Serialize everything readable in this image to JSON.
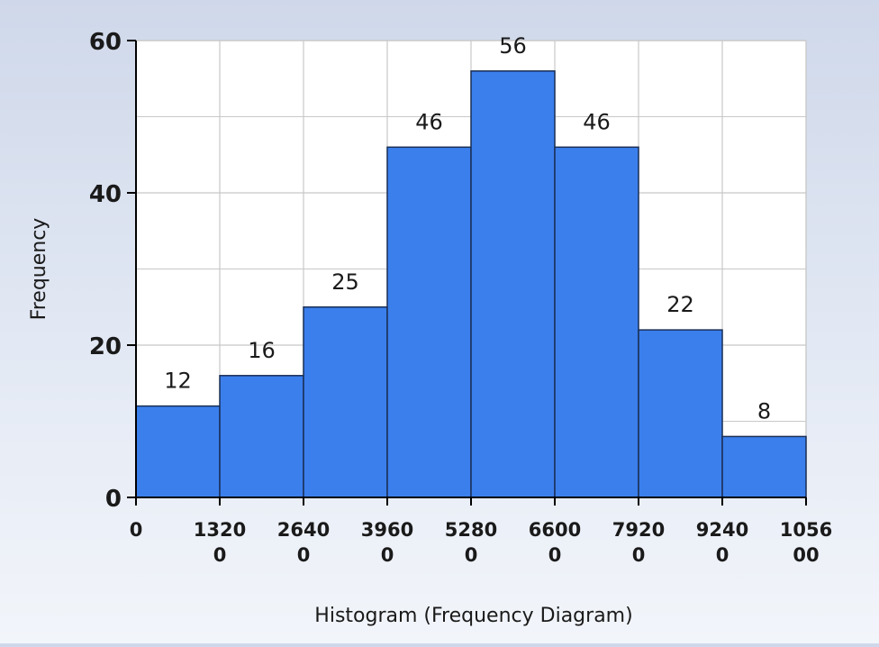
{
  "chart_data": {
    "type": "bar",
    "title": "",
    "xlabel": "Histogram (Frequency Diagram)",
    "ylabel": "Frequency",
    "bin_edges": [
      "0",
      "13200",
      "26400",
      "39600",
      "52800",
      "66000",
      "79200",
      "92400",
      "105600"
    ],
    "values": [
      12,
      16,
      25,
      46,
      56,
      46,
      22,
      8
    ],
    "data_labels": [
      "12",
      "16",
      "25",
      "46",
      "56",
      "46",
      "22",
      "8"
    ],
    "y_ticks": [
      "0",
      "20",
      "40",
      "60"
    ],
    "ylim": [
      0,
      60
    ],
    "x_ticks_vertical_grid": true,
    "grid": true,
    "legend": "none",
    "colors": {
      "bar_fill": "#3b7fed",
      "bar_stroke": "#1a2f55",
      "grid": "#c8c8c8",
      "plot_bg": "#ffffff",
      "axis": "#000000"
    }
  }
}
